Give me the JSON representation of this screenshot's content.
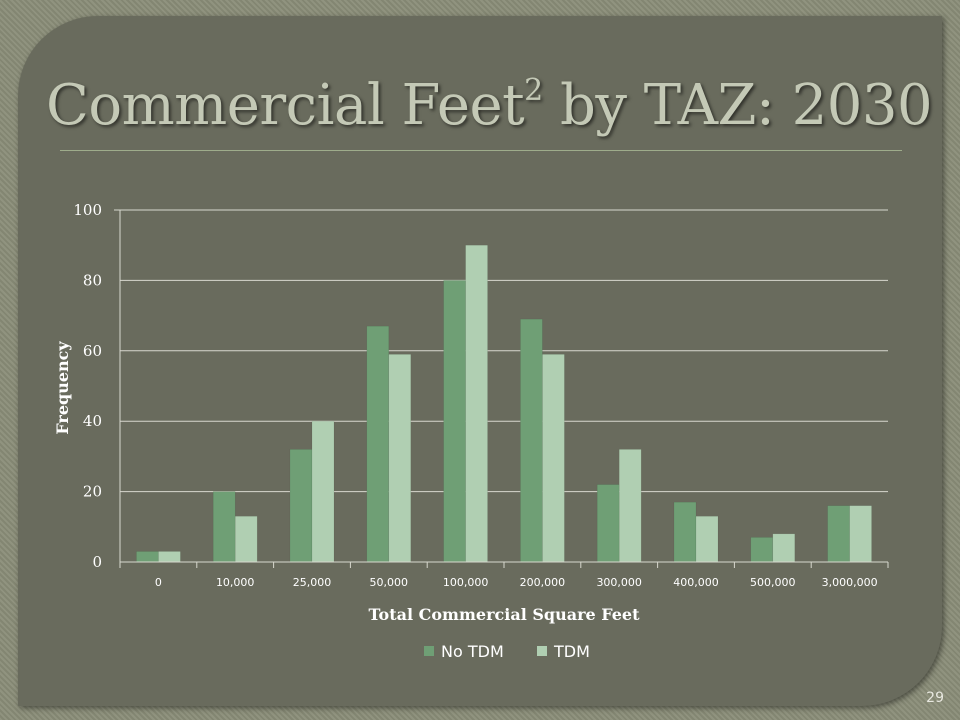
{
  "slide": {
    "title_main": "Commercial Feet",
    "title_sup": "2",
    "title_rest": " by TAZ: 2030",
    "page_number": "29"
  },
  "colors": {
    "background": "#8a8d78",
    "panel": "#696b5d",
    "title": "#c4c9b6",
    "no_tdm": "#6f9f75",
    "tdm": "#b0cfb2"
  },
  "chart_data": {
    "type": "bar",
    "title": "",
    "xlabel": "Total Commercial Square Feet",
    "ylabel": "Frequency",
    "ylim": [
      0,
      100
    ],
    "yticks": [
      0,
      20,
      40,
      60,
      80,
      100
    ],
    "grid": true,
    "legend_position": "bottom",
    "categories": [
      "0",
      "10,000",
      "25,000",
      "50,000",
      "100,000",
      "200,000",
      "300,000",
      "400,000",
      "500,000",
      "3,000,000"
    ],
    "series": [
      {
        "name": "No TDM",
        "color": "#6f9f75",
        "values": [
          3,
          20,
          32,
          67,
          80,
          69,
          22,
          17,
          7,
          16
        ]
      },
      {
        "name": "TDM",
        "color": "#b0cfb2",
        "values": [
          3,
          13,
          40,
          59,
          90,
          59,
          32,
          13,
          8,
          16
        ]
      }
    ]
  }
}
